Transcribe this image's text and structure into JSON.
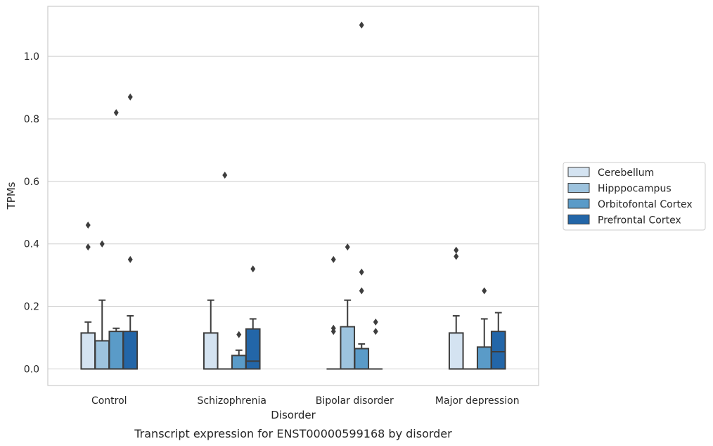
{
  "chart_data": {
    "type": "box",
    "title": "",
    "caption": "Transcript expression for ENST00000599168 by disorder",
    "xlabel": "Disorder",
    "ylabel": "TPMs",
    "ylim": [
      -0.053,
      1.16
    ],
    "yticks": [
      "0.0",
      "0.2",
      "0.4",
      "0.6",
      "0.8",
      "1.0"
    ],
    "grid": true,
    "legend_position": "right",
    "categories": [
      "Control",
      "Schizophrenia",
      "Bipolar disorder",
      "Major depression"
    ],
    "series": [
      {
        "name": "Cerebellum",
        "color": "#d4e3f1",
        "boxes": [
          {
            "q1": 0.0,
            "median": 0.0,
            "q3": 0.115,
            "whisker_low": 0.0,
            "whisker_high": 0.15,
            "outliers": [
              0.46,
              0.39
            ]
          },
          {
            "q1": 0.0,
            "median": 0.0,
            "q3": 0.115,
            "whisker_low": 0.0,
            "whisker_high": 0.22,
            "outliers": []
          },
          {
            "q1": 0.0,
            "median": 0.0,
            "q3": 0.0,
            "whisker_low": 0.0,
            "whisker_high": 0.0,
            "outliers": [
              0.35,
              0.13,
              0.12
            ]
          },
          {
            "q1": 0.0,
            "median": 0.0,
            "q3": 0.115,
            "whisker_low": 0.0,
            "whisker_high": 0.17,
            "outliers": [
              0.38,
              0.36
            ]
          }
        ]
      },
      {
        "name": "Hipppocampus",
        "color": "#9dc3de",
        "boxes": [
          {
            "q1": 0.0,
            "median": 0.0,
            "q3": 0.09,
            "whisker_low": 0.0,
            "whisker_high": 0.22,
            "outliers": [
              0.4
            ]
          },
          {
            "q1": 0.0,
            "median": 0.0,
            "q3": 0.0,
            "whisker_low": 0.0,
            "whisker_high": 0.0,
            "outliers": [
              0.62
            ]
          },
          {
            "q1": 0.0,
            "median": 0.0,
            "q3": 0.135,
            "whisker_low": 0.0,
            "whisker_high": 0.22,
            "outliers": [
              0.39
            ]
          },
          {
            "q1": 0.0,
            "median": 0.0,
            "q3": 0.0,
            "whisker_low": 0.0,
            "whisker_high": 0.0,
            "outliers": []
          }
        ]
      },
      {
        "name": "Orbitofontal Cortex",
        "color": "#5a9bc8",
        "boxes": [
          {
            "q1": 0.0,
            "median": 0.0,
            "q3": 0.12,
            "whisker_low": 0.0,
            "whisker_high": 0.13,
            "outliers": [
              0.82
            ]
          },
          {
            "q1": 0.0,
            "median": 0.0,
            "q3": 0.043,
            "whisker_low": 0.0,
            "whisker_high": 0.06,
            "outliers": [
              0.11
            ]
          },
          {
            "q1": 0.0,
            "median": 0.0,
            "q3": 0.065,
            "whisker_low": 0.0,
            "whisker_high": 0.08,
            "outliers": [
              1.1,
              0.31,
              0.25
            ]
          },
          {
            "q1": 0.0,
            "median": 0.0,
            "q3": 0.07,
            "whisker_low": 0.0,
            "whisker_high": 0.16,
            "outliers": [
              0.25
            ]
          }
        ]
      },
      {
        "name": "Prefrontal Cortex",
        "color": "#2366a8",
        "boxes": [
          {
            "q1": 0.0,
            "median": 0.0,
            "q3": 0.12,
            "whisker_low": 0.0,
            "whisker_high": 0.17,
            "outliers": [
              0.87,
              0.35
            ]
          },
          {
            "q1": 0.0,
            "median": 0.025,
            "q3": 0.128,
            "whisker_low": 0.0,
            "whisker_high": 0.16,
            "outliers": [
              0.32
            ]
          },
          {
            "q1": 0.0,
            "median": 0.0,
            "q3": 0.0,
            "whisker_low": 0.0,
            "whisker_high": 0.0,
            "outliers": [
              0.15,
              0.12
            ]
          },
          {
            "q1": 0.0,
            "median": 0.055,
            "q3": 0.12,
            "whisker_low": 0.0,
            "whisker_high": 0.18,
            "outliers": []
          }
        ]
      }
    ]
  }
}
